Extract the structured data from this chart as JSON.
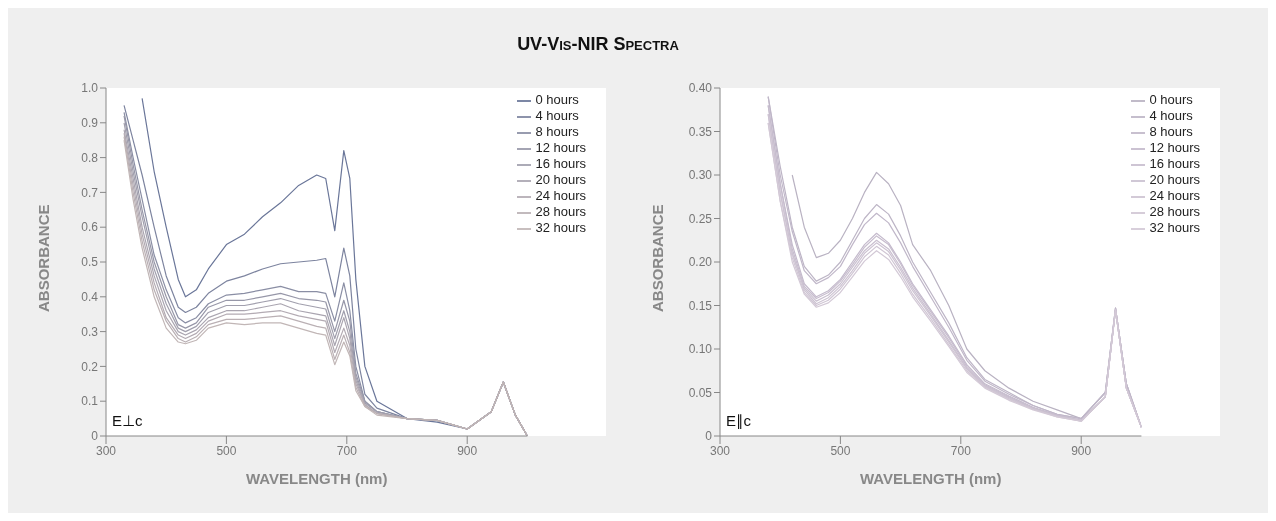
{
  "chart_data": [
    {
      "type": "line",
      "title": "UV-Vis-NIR Spectra",
      "xlabel": "WAVELENGTH (nm)",
      "ylabel": "ABSORBANCE",
      "annotations": [
        "E⊥c"
      ],
      "xlim": [
        300,
        1000
      ],
      "xticks": [
        300,
        500,
        700,
        900
      ],
      "ylim": [
        0,
        1
      ],
      "yticks": [
        {
          "value": 0,
          "label": "0"
        },
        0.1,
        0.2,
        0.3,
        0.4,
        0.5,
        0.6,
        0.7,
        0.8,
        0.9,
        {
          "value": 1,
          "label": "1.0"
        }
      ],
      "grid": false,
      "legend": "top right",
      "marker": "none",
      "line_style": "solid",
      "x": [
        330,
        345,
        360,
        380,
        400,
        420,
        432,
        450,
        470,
        500,
        530,
        560,
        590,
        620,
        650,
        665,
        680,
        695,
        705,
        715,
        730,
        750,
        800,
        850,
        900,
        940,
        960,
        980,
        1000
      ],
      "series": [
        {
          "name": "0 hours",
          "color": "#6a7699",
          "values": [
            null,
            null,
            0.97,
            0.76,
            0.6,
            0.45,
            0.4,
            0.42,
            0.48,
            0.55,
            0.58,
            0.63,
            0.67,
            0.72,
            0.75,
            0.74,
            0.59,
            0.82,
            0.74,
            0.45,
            0.2,
            0.1,
            0.05,
            0.04,
            0.02,
            0.07,
            0.155,
            0.06,
            0
          ]
        },
        {
          "name": "4 hours",
          "color": "#7d849f",
          "values": [
            0.95,
            0.85,
            0.75,
            0.6,
            0.46,
            0.37,
            0.355,
            0.37,
            0.41,
            0.445,
            0.46,
            0.48,
            0.495,
            0.5,
            0.505,
            0.51,
            0.4,
            0.54,
            0.46,
            0.25,
            0.12,
            0.08,
            0.05,
            0.045,
            0.02,
            0.07,
            0.155,
            0.06,
            0
          ]
        },
        {
          "name": "8 hours",
          "color": "#8a8ea4",
          "values": [
            0.93,
            0.8,
            0.68,
            0.52,
            0.42,
            0.34,
            0.325,
            0.34,
            0.38,
            0.405,
            0.41,
            0.42,
            0.43,
            0.415,
            0.415,
            0.41,
            0.33,
            0.44,
            0.36,
            0.2,
            0.1,
            0.07,
            0.05,
            0.045,
            0.02,
            0.07,
            0.155,
            0.06,
            0
          ]
        },
        {
          "name": "12 hours",
          "color": "#9797a8",
          "values": [
            0.92,
            0.78,
            0.65,
            0.5,
            0.4,
            0.32,
            0.31,
            0.325,
            0.37,
            0.39,
            0.39,
            0.4,
            0.41,
            0.395,
            0.39,
            0.385,
            0.3,
            0.39,
            0.33,
            0.18,
            0.1,
            0.07,
            0.05,
            0.045,
            0.02,
            0.07,
            0.155,
            0.06,
            0
          ]
        },
        {
          "name": "16 hours",
          "color": "#a19fad",
          "values": [
            0.9,
            0.76,
            0.63,
            0.48,
            0.38,
            0.31,
            0.3,
            0.315,
            0.355,
            0.375,
            0.375,
            0.385,
            0.395,
            0.38,
            0.37,
            0.365,
            0.28,
            0.36,
            0.3,
            0.17,
            0.095,
            0.07,
            0.05,
            0.045,
            0.02,
            0.07,
            0.155,
            0.06,
            0
          ]
        },
        {
          "name": "20 hours",
          "color": "#aaa5b0",
          "values": [
            0.88,
            0.74,
            0.6,
            0.46,
            0.36,
            0.3,
            0.29,
            0.305,
            0.34,
            0.36,
            0.36,
            0.37,
            0.38,
            0.36,
            0.35,
            0.345,
            0.26,
            0.34,
            0.28,
            0.16,
            0.09,
            0.065,
            0.05,
            0.045,
            0.02,
            0.07,
            0.155,
            0.06,
            0
          ]
        },
        {
          "name": "24 hours",
          "color": "#b3abb3",
          "values": [
            0.87,
            0.72,
            0.58,
            0.44,
            0.34,
            0.29,
            0.28,
            0.295,
            0.33,
            0.35,
            0.35,
            0.355,
            0.36,
            0.345,
            0.335,
            0.33,
            0.24,
            0.31,
            0.26,
            0.15,
            0.09,
            0.065,
            0.05,
            0.045,
            0.02,
            0.07,
            0.155,
            0.06,
            0
          ]
        },
        {
          "name": "28 hours",
          "color": "#bab0b4",
          "values": [
            0.86,
            0.7,
            0.56,
            0.42,
            0.33,
            0.28,
            0.27,
            0.285,
            0.32,
            0.335,
            0.335,
            0.34,
            0.345,
            0.33,
            0.315,
            0.31,
            0.22,
            0.29,
            0.24,
            0.14,
            0.085,
            0.065,
            0.05,
            0.045,
            0.02,
            0.07,
            0.155,
            0.06,
            0
          ]
        },
        {
          "name": "32 hours",
          "color": "#c1b6b6",
          "values": [
            0.85,
            0.68,
            0.54,
            0.4,
            0.31,
            0.27,
            0.265,
            0.275,
            0.31,
            0.325,
            0.32,
            0.325,
            0.325,
            0.31,
            0.295,
            0.29,
            0.205,
            0.27,
            0.23,
            0.13,
            0.085,
            0.06,
            0.05,
            0.045,
            0.02,
            0.07,
            0.155,
            0.06,
            0
          ]
        }
      ]
    },
    {
      "type": "line",
      "xlabel": "WAVELENGTH (nm)",
      "ylabel": "ABSORBANCE",
      "annotations": [
        "E∥c"
      ],
      "xlim": [
        300,
        1000
      ],
      "xticks": [
        300,
        500,
        700,
        900
      ],
      "ylim": [
        0,
        0.4
      ],
      "yticks": [
        {
          "value": 0,
          "label": "0"
        },
        0.05,
        {
          "value": 0.1,
          "label": "0.10"
        },
        0.15,
        {
          "value": 0.2,
          "label": "0.20"
        },
        0.25,
        {
          "value": 0.3,
          "label": "0.30"
        },
        0.35,
        {
          "value": 0.4,
          "label": "0.40"
        }
      ],
      "grid": false,
      "legend": "top right",
      "marker": "none",
      "line_style": "solid",
      "x": [
        380,
        400,
        420,
        440,
        460,
        480,
        500,
        520,
        540,
        560,
        580,
        600,
        620,
        650,
        680,
        710,
        740,
        780,
        820,
        860,
        900,
        940,
        957,
        975,
        1000
      ],
      "series": [
        {
          "name": "0 hours",
          "color": "#b9b2c2",
          "values": [
            null,
            null,
            0.3,
            0.24,
            0.205,
            0.21,
            0.225,
            0.25,
            0.28,
            0.303,
            0.29,
            0.265,
            0.22,
            0.19,
            0.15,
            0.1,
            0.075,
            0.055,
            0.04,
            0.03,
            0.02,
            0.05,
            0.147,
            0.06,
            0.01
          ]
        },
        {
          "name": "4 hours",
          "color": "#bdb5c6",
          "values": [
            0.39,
            0.31,
            0.24,
            0.195,
            0.178,
            0.185,
            0.2,
            0.225,
            0.25,
            0.266,
            0.255,
            0.23,
            0.2,
            0.165,
            0.13,
            0.09,
            0.065,
            0.05,
            0.035,
            0.025,
            0.02,
            0.05,
            0.147,
            0.06,
            0.01
          ]
        },
        {
          "name": "8 hours",
          "color": "#c0b7c9",
          "values": [
            0.39,
            0.3,
            0.235,
            0.19,
            0.175,
            0.182,
            0.195,
            0.22,
            0.243,
            0.256,
            0.245,
            0.222,
            0.195,
            0.16,
            0.125,
            0.087,
            0.063,
            0.048,
            0.035,
            0.025,
            0.02,
            0.05,
            0.147,
            0.06,
            0.01
          ]
        },
        {
          "name": "12 hours",
          "color": "#c4bacc",
          "values": [
            0.38,
            0.29,
            0.22,
            0.175,
            0.16,
            0.167,
            0.18,
            0.2,
            0.22,
            0.233,
            0.222,
            0.2,
            0.175,
            0.145,
            0.115,
            0.082,
            0.06,
            0.046,
            0.033,
            0.024,
            0.018,
            0.045,
            0.145,
            0.055,
            0.01
          ]
        },
        {
          "name": "16 hours",
          "color": "#c7bdce",
          "values": [
            0.38,
            0.29,
            0.215,
            0.172,
            0.158,
            0.165,
            0.178,
            0.197,
            0.217,
            0.23,
            0.22,
            0.198,
            0.173,
            0.143,
            0.113,
            0.08,
            0.059,
            0.045,
            0.032,
            0.024,
            0.018,
            0.045,
            0.145,
            0.055,
            0.01
          ]
        },
        {
          "name": "20 hours",
          "color": "#cac0d0",
          "values": [
            0.37,
            0.28,
            0.21,
            0.17,
            0.155,
            0.162,
            0.175,
            0.194,
            0.213,
            0.225,
            0.215,
            0.194,
            0.17,
            0.14,
            0.11,
            0.078,
            0.058,
            0.044,
            0.032,
            0.023,
            0.018,
            0.045,
            0.145,
            0.055,
            0.01
          ]
        },
        {
          "name": "24 hours",
          "color": "#cdc3d2",
          "values": [
            0.37,
            0.28,
            0.21,
            0.168,
            0.152,
            0.159,
            0.172,
            0.19,
            0.21,
            0.222,
            0.212,
            0.191,
            0.167,
            0.138,
            0.108,
            0.077,
            0.057,
            0.043,
            0.031,
            0.023,
            0.017,
            0.045,
            0.145,
            0.055,
            0.01
          ]
        },
        {
          "name": "28 hours",
          "color": "#d0c6d4",
          "values": [
            0.36,
            0.27,
            0.205,
            0.165,
            0.15,
            0.156,
            0.169,
            0.187,
            0.206,
            0.218,
            0.208,
            0.187,
            0.163,
            0.135,
            0.105,
            0.075,
            0.056,
            0.042,
            0.031,
            0.022,
            0.017,
            0.045,
            0.145,
            0.055,
            0.01
          ]
        },
        {
          "name": "32 hours",
          "color": "#d3c9d6",
          "values": [
            0.36,
            0.27,
            0.2,
            0.163,
            0.148,
            0.153,
            0.165,
            0.183,
            0.201,
            0.213,
            0.203,
            0.183,
            0.16,
            0.132,
            0.103,
            0.073,
            0.055,
            0.041,
            0.03,
            0.022,
            0.017,
            0.045,
            0.145,
            0.055,
            0.01
          ]
        }
      ]
    }
  ]
}
